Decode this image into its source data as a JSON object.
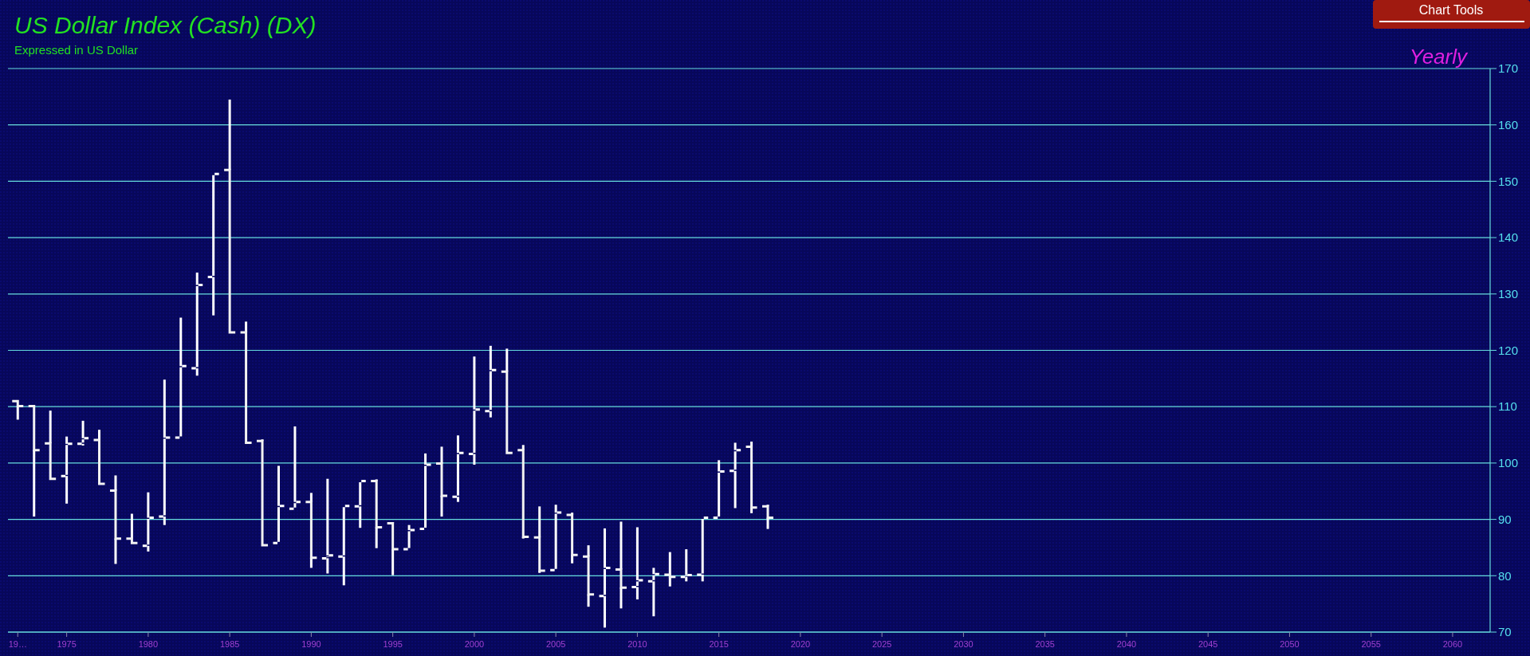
{
  "chart_data": {
    "type": "candlestick",
    "title": "US Dollar Index (Cash) (DX)",
    "subtitle": "Expressed in US Dollar",
    "annotations": [
      "Yearly",
      "Chart Tools"
    ],
    "color": "#ffffff",
    "grid": "y",
    "x": [
      1972,
      1973,
      1974,
      1975,
      1976,
      1977,
      1978,
      1979,
      1980,
      1981,
      1982,
      1983,
      1984,
      1985,
      1986,
      1987,
      1988,
      1989,
      1990,
      1991,
      1992,
      1993,
      1994,
      1995,
      1996,
      1997,
      1998,
      1999,
      2000,
      2001,
      2002,
      2003,
      2004,
      2005,
      2006,
      2007,
      2008,
      2009,
      2010,
      2011,
      2012,
      2013,
      2014,
      2015,
      2016,
      2017,
      2018
    ],
    "ohlc": [
      [
        111.0,
        111.0,
        107.7,
        110.1
      ],
      [
        110.1,
        110.1,
        90.5,
        102.3
      ],
      [
        103.5,
        109.3,
        97.2,
        97.2
      ],
      [
        97.7,
        104.7,
        92.8,
        103.4
      ],
      [
        103.4,
        107.5,
        103.1,
        104.4
      ],
      [
        104.1,
        105.9,
        96.3,
        96.3
      ],
      [
        95.1,
        97.8,
        82.1,
        86.6
      ],
      [
        86.6,
        91.0,
        85.8,
        85.8
      ],
      [
        85.3,
        94.8,
        84.3,
        90.3
      ],
      [
        90.5,
        114.8,
        89.0,
        104.5
      ],
      [
        104.5,
        125.8,
        104.5,
        117.2
      ],
      [
        116.8,
        133.8,
        115.5,
        131.6
      ],
      [
        133.0,
        151.3,
        126.2,
        151.3
      ],
      [
        152.0,
        164.5,
        123.2,
        123.2
      ],
      [
        123.2,
        125.1,
        103.6,
        103.6
      ],
      [
        103.9,
        104.2,
        85.4,
        85.4
      ],
      [
        85.8,
        99.5,
        85.8,
        92.4
      ],
      [
        91.9,
        106.5,
        91.9,
        93.1
      ],
      [
        93.1,
        94.7,
        81.4,
        83.2
      ],
      [
        83.1,
        97.2,
        80.4,
        83.6
      ],
      [
        83.4,
        92.4,
        78.3,
        92.4
      ],
      [
        92.3,
        96.8,
        88.5,
        96.8
      ],
      [
        96.8,
        97.1,
        84.9,
        88.6
      ],
      [
        89.3,
        89.5,
        80.1,
        84.7
      ],
      [
        84.7,
        89.0,
        84.7,
        88.1
      ],
      [
        88.3,
        101.7,
        88.3,
        99.7
      ],
      [
        99.9,
        102.9,
        90.5,
        94.2
      ],
      [
        94.0,
        104.9,
        93.1,
        101.8
      ],
      [
        101.6,
        118.9,
        99.7,
        109.5
      ],
      [
        109.2,
        120.8,
        108.1,
        116.5
      ],
      [
        116.2,
        120.3,
        101.8,
        101.8
      ],
      [
        102.3,
        103.2,
        86.6,
        86.9
      ],
      [
        86.8,
        92.3,
        80.5,
        80.9
      ],
      [
        81.0,
        92.6,
        81.0,
        91.2
      ],
      [
        90.8,
        91.2,
        82.2,
        83.7
      ],
      [
        83.4,
        85.4,
        74.5,
        76.7
      ],
      [
        76.4,
        88.4,
        70.8,
        81.4
      ],
      [
        81.1,
        89.6,
        74.2,
        77.9
      ],
      [
        78.0,
        88.6,
        75.8,
        79.2
      ],
      [
        79.0,
        81.4,
        72.8,
        80.3
      ],
      [
        80.2,
        84.2,
        78.1,
        79.8
      ],
      [
        79.8,
        84.7,
        79.0,
        80.1
      ],
      [
        80.2,
        90.3,
        79.0,
        90.3
      ],
      [
        90.3,
        100.5,
        90.3,
        98.5
      ],
      [
        98.6,
        103.6,
        92.0,
        102.3
      ],
      [
        102.9,
        103.8,
        91.1,
        92.1
      ],
      [
        92.3,
        92.6,
        88.3,
        90.3
      ]
    ],
    "xlim": [
      1971.4,
      2062.3
    ],
    "xticks": [
      {
        "value": 1972,
        "label": "19…"
      },
      1975,
      1980,
      1985,
      1990,
      1995,
      2000,
      2005,
      2010,
      2015,
      2020,
      2025,
      2030,
      2035,
      2040,
      2045,
      2050,
      2055,
      2060
    ],
    "ylim": [
      70,
      170
    ],
    "yticks": [
      70,
      80,
      90,
      100,
      110,
      120,
      130,
      140,
      150,
      160,
      170
    ]
  }
}
